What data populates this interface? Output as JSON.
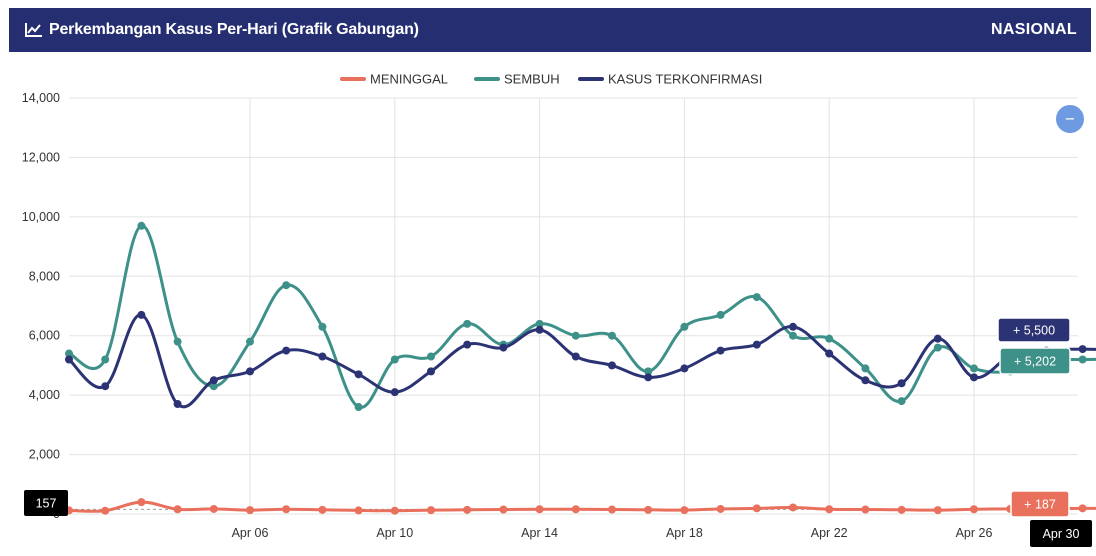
{
  "header": {
    "title": "Perkembangan Kasus Per-Hari (Grafik Gabungan)",
    "scope": "NASIONAL",
    "icon": "line-chart-icon"
  },
  "colors": {
    "header_bg": "#262e72",
    "meninggal": "#e8705c",
    "sembuh": "#3e9189",
    "terkonfirmasi": "#2c3374",
    "zoom_button": "#6d9ae0"
  },
  "zoom_button": {
    "label": "−",
    "icon": "zoom-out-icon"
  },
  "chart_data": {
    "type": "line",
    "x": [
      "Apr 01",
      "Apr 02",
      "Apr 03",
      "Apr 04",
      "Apr 05",
      "Apr 06",
      "Apr 07",
      "Apr 08",
      "Apr 09",
      "Apr 10",
      "Apr 11",
      "Apr 12",
      "Apr 13",
      "Apr 14",
      "Apr 15",
      "Apr 16",
      "Apr 17",
      "Apr 18",
      "Apr 19",
      "Apr 20",
      "Apr 21",
      "Apr 22",
      "Apr 23",
      "Apr 24",
      "Apr 25",
      "Apr 26",
      "Apr 27",
      "Apr 28",
      "Apr 29",
      "Apr 30"
    ],
    "x_ticks": [
      "Apr 06",
      "Apr 10",
      "Apr 14",
      "Apr 18",
      "Apr 22",
      "Apr 26",
      "Apr 30"
    ],
    "ylim": [
      0,
      14000
    ],
    "y_ticks": [
      "0",
      "2,000",
      "4,000",
      "6,000",
      "8,000",
      "10,000",
      "12,000",
      "14,000"
    ],
    "grid": true,
    "legend_position": "top-center",
    "series": [
      {
        "name": "MENINGGAL",
        "key": "meninggal",
        "values": [
          120,
          110,
          400,
          160,
          170,
          130,
          160,
          140,
          120,
          110,
          130,
          140,
          150,
          160,
          160,
          150,
          140,
          130,
          170,
          190,
          220,
          160,
          150,
          140,
          130,
          160,
          170,
          180,
          190,
          187
        ]
      },
      {
        "name": "SEMBUH",
        "key": "sembuh",
        "values": [
          5400,
          5200,
          9700,
          5800,
          4300,
          5800,
          7700,
          6300,
          3600,
          5200,
          5300,
          6400,
          5700,
          6400,
          6000,
          6000,
          4800,
          6300,
          6700,
          7300,
          6000,
          5900,
          4900,
          3800,
          5600,
          4900,
          4800,
          5150,
          5200,
          5202
        ]
      },
      {
        "name": "KASUS TERKONFIRMASI",
        "key": "terkonfirmasi",
        "values": [
          5200,
          4300,
          6700,
          3700,
          4500,
          4800,
          5500,
          5300,
          4700,
          4100,
          4800,
          5700,
          5600,
          6200,
          5300,
          5000,
          4600,
          4900,
          5500,
          5700,
          6300,
          5400,
          4500,
          4400,
          5900,
          4600,
          5300,
          5500,
          5550,
          5500
        ]
      }
    ],
    "tooltips": [
      {
        "series": "terkonfirmasi",
        "label": "+ 5,500"
      },
      {
        "series": "sembuh",
        "label": "+ 5,202"
      },
      {
        "series": "meninggal",
        "label": "+ 187"
      }
    ],
    "crosshair": {
      "x_label": "Apr 30",
      "y_label": "157"
    }
  }
}
